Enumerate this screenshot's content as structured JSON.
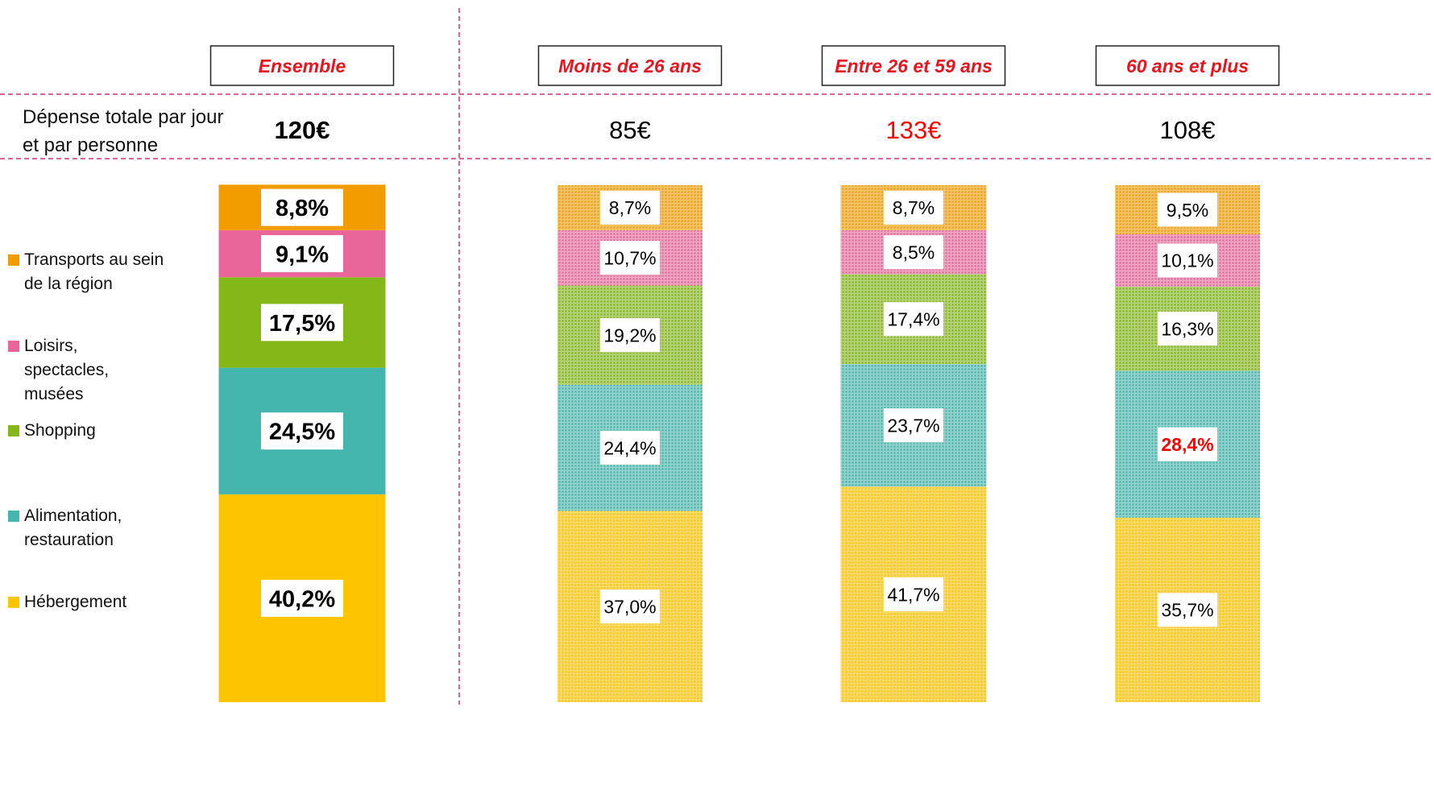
{
  "chart_data": {
    "type": "stacked_bar",
    "categories": [
      "Ensemble",
      "Moins de 26 ans",
      "Entre 26 et 59 ans",
      "60 ans et plus"
    ],
    "textured": [
      false,
      true,
      true,
      true
    ],
    "totals": {
      "label": "Dépense totale par jour et par personne",
      "values": [
        120,
        85,
        133,
        108
      ],
      "value_labels": [
        "120€",
        "85€",
        "133€",
        "108€"
      ],
      "label_colors": [
        "#000000",
        "#000000",
        "#ff0000",
        "#000000"
      ]
    },
    "series": [
      {
        "name": "Hébergement",
        "color": "#fcc500",
        "values": [
          40.2,
          37.0,
          41.7,
          35.7
        ],
        "value_labels": [
          "40,2%",
          "37,0%",
          "41,7%",
          "35,7%"
        ],
        "label_colors": [
          "#000000",
          "#000000",
          "#000000",
          "#000000"
        ]
      },
      {
        "name": "Alimentation, restauration",
        "color": "#44b6ad",
        "values": [
          24.5,
          24.4,
          23.7,
          28.4
        ],
        "value_labels": [
          "24,5%",
          "24,4%",
          "23,7%",
          "28,4%"
        ],
        "label_colors": [
          "#000000",
          "#000000",
          "#000000",
          "#ff0000"
        ]
      },
      {
        "name": "Shopping",
        "color": "#84b819",
        "values": [
          17.5,
          19.2,
          17.4,
          16.3
        ],
        "value_labels": [
          "17,5%",
          "19,2%",
          "17,4%",
          "16,3%"
        ],
        "label_colors": [
          "#000000",
          "#000000",
          "#000000",
          "#000000"
        ]
      },
      {
        "name": "Loisirs, spectacles, musées",
        "color": "#e9669a",
        "values": [
          9.1,
          10.7,
          8.5,
          10.1
        ],
        "value_labels": [
          "9,1%",
          "10,7%",
          "8,5%",
          "10,1%"
        ],
        "label_colors": [
          "#000000",
          "#000000",
          "#000000",
          "#000000"
        ]
      },
      {
        "name": "Transports au sein de la région",
        "color": "#f39c00",
        "values": [
          8.8,
          8.7,
          8.7,
          9.5
        ],
        "value_labels": [
          "8,8%",
          "8,7%",
          "8,7%",
          "9,5%"
        ],
        "label_colors": [
          "#000000",
          "#000000",
          "#000000",
          "#000000"
        ]
      }
    ],
    "ylim": [
      0,
      100
    ]
  }
}
